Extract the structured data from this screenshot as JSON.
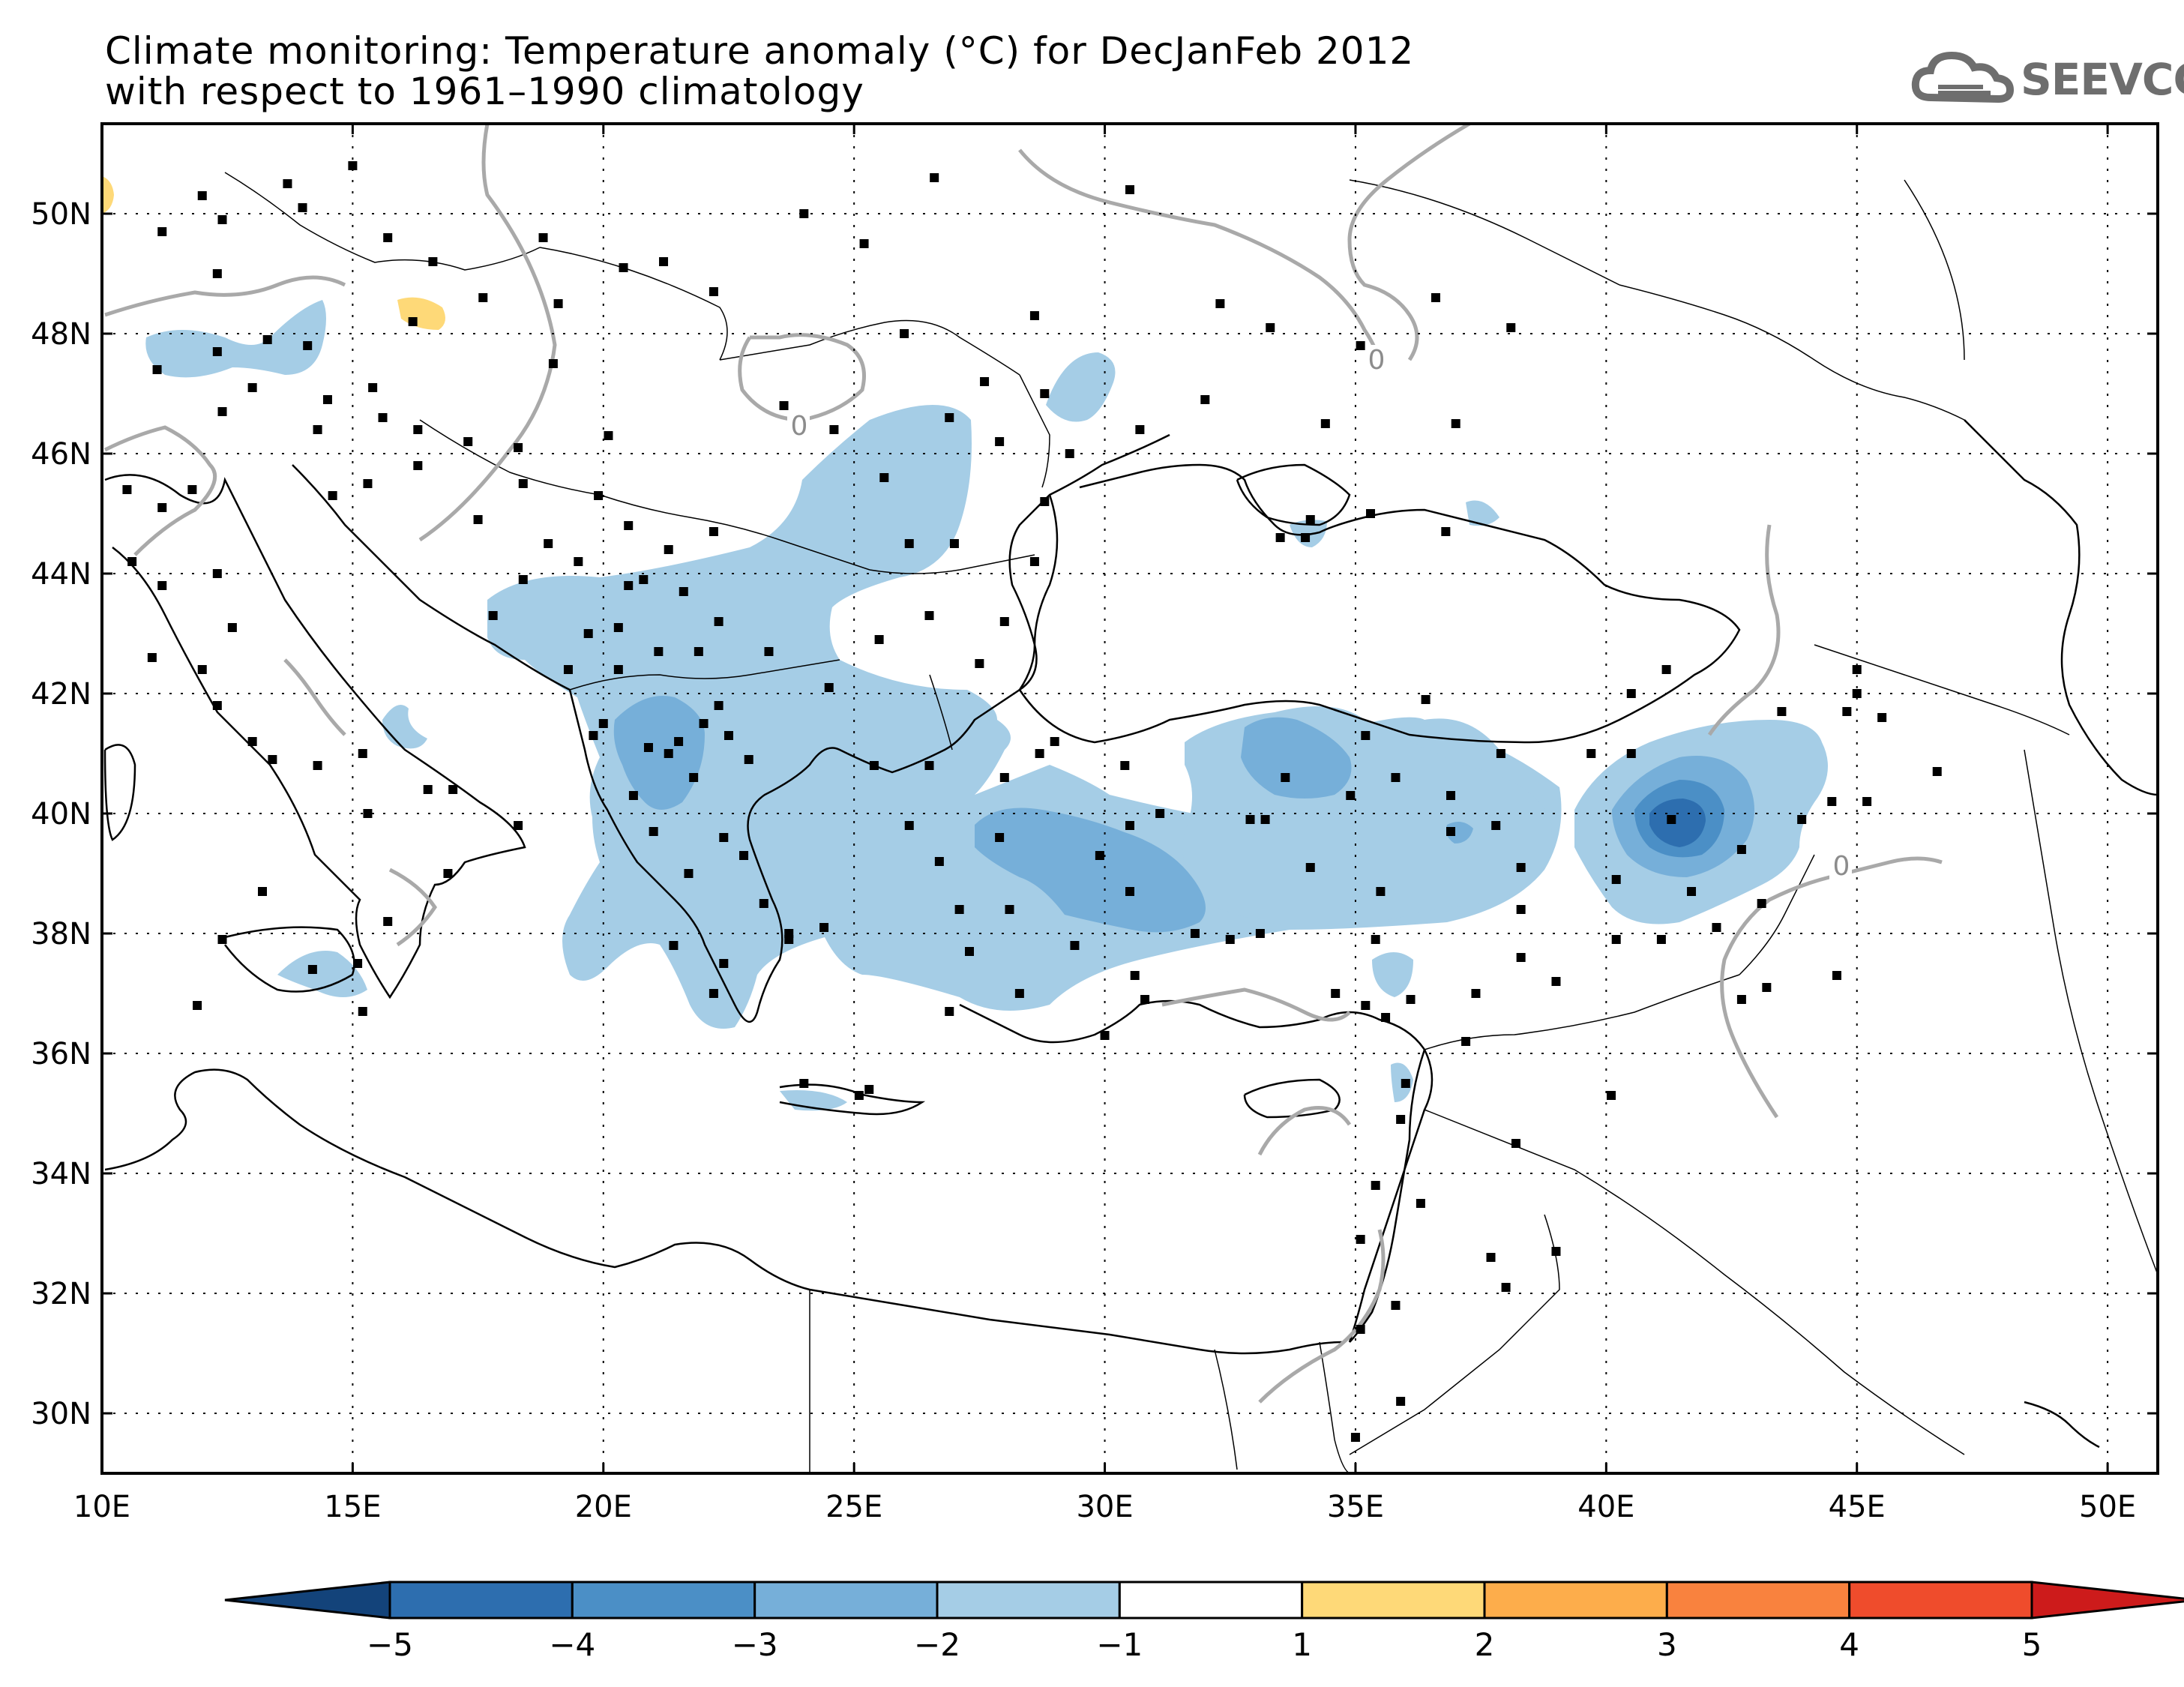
{
  "title": {
    "line1": "Climate monitoring: Temperature anomaly (°C) for DecJanFeb 2012",
    "line2": "with respect to 1961–1990 climatology"
  },
  "logo": {
    "text": "SEEVCCC",
    "icon": "cloud-icon"
  },
  "map": {
    "lon_range": [
      10,
      51
    ],
    "lat_range": [
      29,
      51.5
    ],
    "x_ticks": [
      "10E",
      "15E",
      "20E",
      "25E",
      "30E",
      "35E",
      "40E",
      "45E",
      "50E"
    ],
    "y_ticks": [
      "30N",
      "32N",
      "34N",
      "36N",
      "38N",
      "40N",
      "42N",
      "44N",
      "46N",
      "48N",
      "50N"
    ],
    "contour_label": "0",
    "gridlines": "dotted"
  },
  "colorbar": {
    "labels": [
      "−5",
      "−4",
      "−3",
      "−2",
      "−1",
      "1",
      "2",
      "3",
      "4",
      "5"
    ],
    "colors": [
      "#13437a",
      "#2d6eaf",
      "#4b8fc6",
      "#76afd9",
      "#a5cde6",
      "#ffffff",
      "#fed978",
      "#fdad4b",
      "#f9823e",
      "#ef4c2c",
      "#cd1b1b"
    ],
    "low_extension": "#13437a",
    "high_extension": "#cd1b1b"
  }
}
